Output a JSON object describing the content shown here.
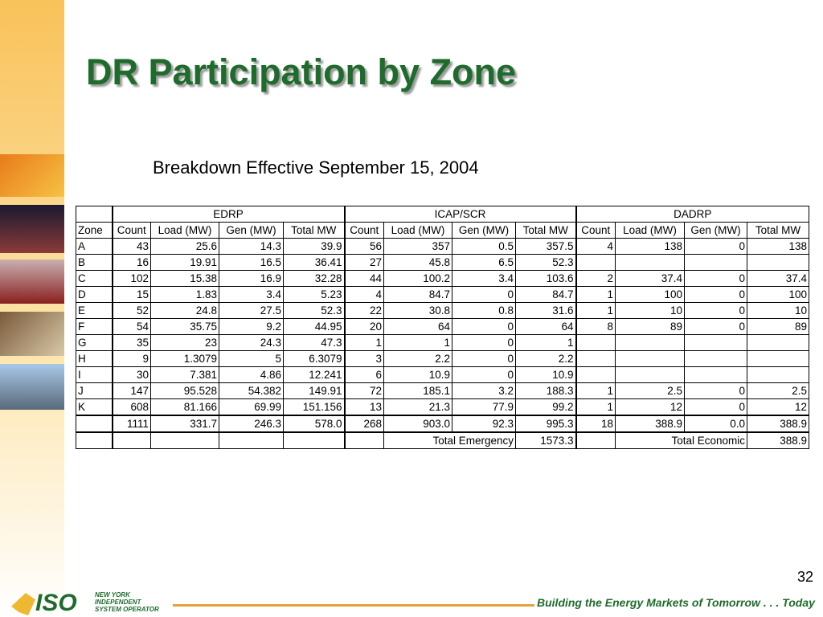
{
  "title": "DR Participation by Zone",
  "subtitle": "Breakdown Effective September 15, 2004",
  "table": {
    "groups": [
      "EDRP",
      "ICAP/SCR",
      "DADRP"
    ],
    "headers": [
      "Zone",
      "Count",
      "Load (MW)",
      "Gen (MW)",
      "Total MW",
      "Count",
      "Load (MW)",
      "Gen (MW)",
      "Total MW",
      "Count",
      "Load (MW)",
      "Gen (MW)",
      "Total MW"
    ],
    "rows": [
      [
        "A",
        "43",
        "25.6",
        "14.3",
        "39.9",
        "56",
        "357",
        "0.5",
        "357.5",
        "4",
        "138",
        "0",
        "138"
      ],
      [
        "B",
        "16",
        "19.91",
        "16.5",
        "36.41",
        "27",
        "45.8",
        "6.5",
        "52.3",
        null,
        null,
        null,
        null
      ],
      [
        "C",
        "102",
        "15.38",
        "16.9",
        "32.28",
        "44",
        "100.2",
        "3.4",
        "103.6",
        "2",
        "37.4",
        "0",
        "37.4"
      ],
      [
        "D",
        "15",
        "1.83",
        "3.4",
        "5.23",
        "4",
        "84.7",
        "0",
        "84.7",
        "1",
        "100",
        "0",
        "100"
      ],
      [
        "E",
        "52",
        "24.8",
        "27.5",
        "52.3",
        "22",
        "30.8",
        "0.8",
        "31.6",
        "1",
        "10",
        "0",
        "10"
      ],
      [
        "F",
        "54",
        "35.75",
        "9.2",
        "44.95",
        "20",
        "64",
        "0",
        "64",
        "8",
        "89",
        "0",
        "89"
      ],
      [
        "G",
        "35",
        "23",
        "24.3",
        "47.3",
        "1",
        "1",
        "0",
        "1",
        null,
        null,
        null,
        null
      ],
      [
        "H",
        "9",
        "1.3079",
        "5",
        "6.3079",
        "3",
        "2.2",
        "0",
        "2.2",
        null,
        null,
        null,
        null
      ],
      [
        "I",
        "30",
        "7.381",
        "4.86",
        "12.241",
        "6",
        "10.9",
        "0",
        "10.9",
        null,
        null,
        null,
        null
      ],
      [
        "J",
        "147",
        "95.528",
        "54.382",
        "149.91",
        "72",
        "185.1",
        "3.2",
        "188.3",
        "1",
        "2.5",
        "0",
        "2.5"
      ],
      [
        "K",
        "608",
        "81.166",
        "69.99",
        "151.156",
        "13",
        "21.3",
        "77.9",
        "99.2",
        "1",
        "12",
        "0",
        "12"
      ]
    ],
    "totals": [
      "1111",
      "331.7",
      "246.3",
      "578.0",
      "268",
      "903.0",
      "92.3",
      "995.3",
      "18",
      "388.9",
      "0.0",
      "388.9"
    ],
    "summary": {
      "emergency_label": "Total Emergency",
      "emergency_value": "1573.3",
      "economic_label": "Total Economic",
      "economic_value": "388.9"
    }
  },
  "page_number": "32",
  "footer": {
    "logo": "ISO",
    "logo_lines": [
      "NEW YORK",
      "INDEPENDENT",
      "SYSTEM OPERATOR"
    ],
    "tagline": "Building the Energy Markets of Tomorrow . . . Today"
  }
}
